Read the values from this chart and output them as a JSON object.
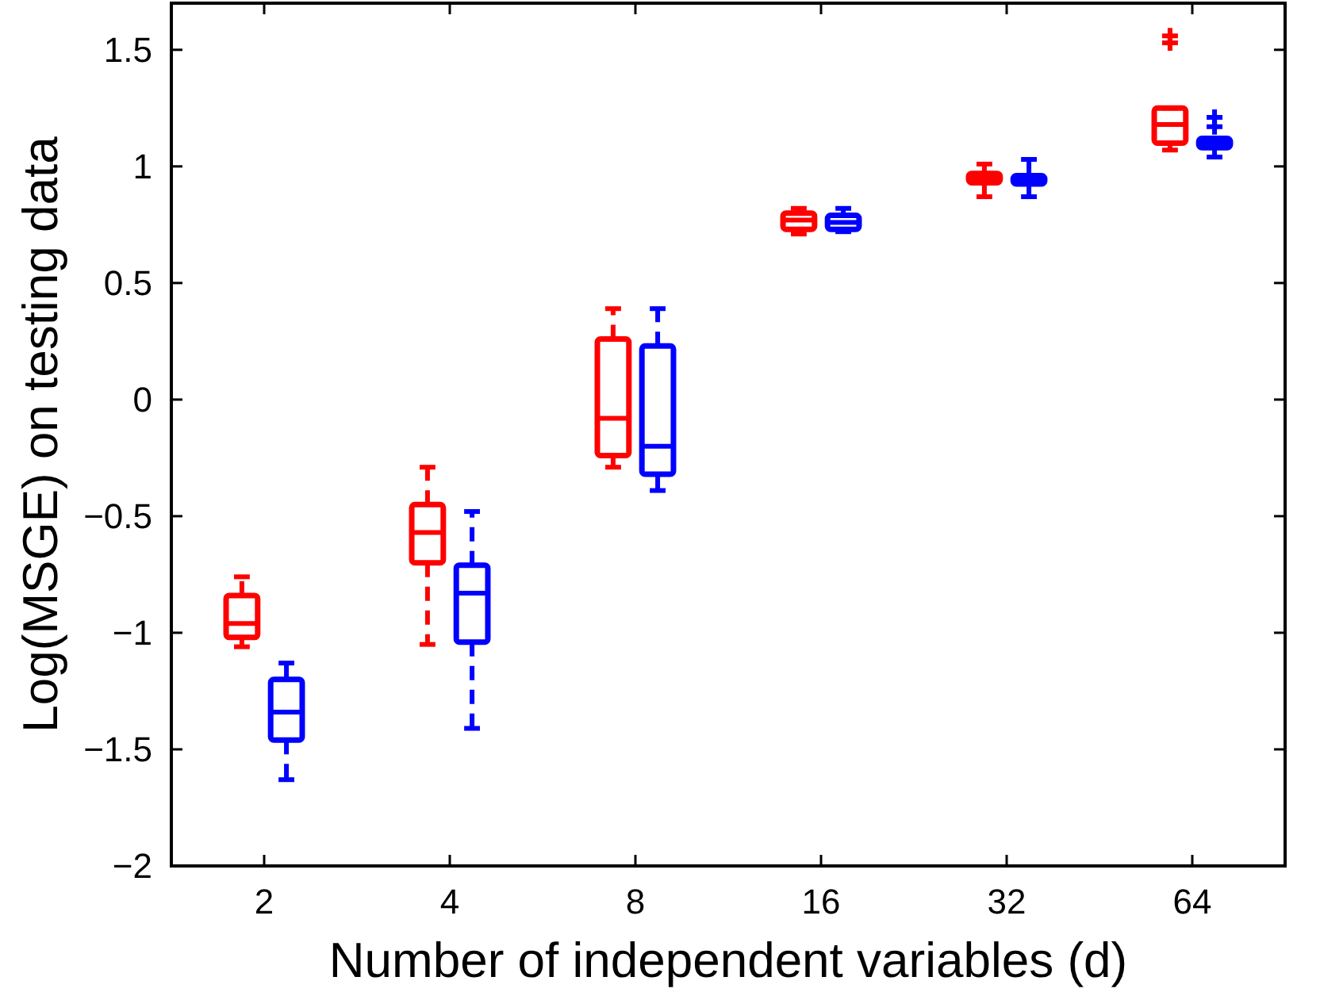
{
  "chart_data": {
    "type": "box",
    "xlabel": "Number of independent variables (d)",
    "ylabel": "Log(MSGE) on testing data",
    "categories": [
      "2",
      "4",
      "8",
      "16",
      "32",
      "64"
    ],
    "ylim": [
      -2,
      1.7
    ],
    "yticks": [
      -2,
      -1.5,
      -1,
      -0.5,
      0,
      0.5,
      1,
      1.5
    ],
    "grid": false,
    "line_style": "dashed",
    "marker": "cross",
    "series": [
      {
        "color": "#ff0000",
        "boxes": [
          {
            "low": -1.06,
            "q1": -1.02,
            "median": -0.96,
            "q3": -0.84,
            "high": -0.76
          },
          {
            "low": -1.05,
            "q1": -0.7,
            "median": -0.57,
            "q3": -0.45,
            "high": -0.29
          },
          {
            "low": -0.29,
            "q1": -0.24,
            "median": -0.08,
            "q3": 0.26,
            "high": 0.39
          },
          {
            "low": 0.71,
            "q1": 0.73,
            "median": 0.77,
            "q3": 0.8,
            "high": 0.82
          },
          {
            "low": 0.87,
            "q1": 0.93,
            "median": 0.95,
            "q3": 0.97,
            "high": 1.01
          },
          {
            "low": 1.07,
            "q1": 1.1,
            "median": 1.18,
            "q3": 1.25,
            "high": 1.25,
            "outliers": [
              1.53,
              1.56
            ]
          }
        ]
      },
      {
        "color": "#0000ff",
        "boxes": [
          {
            "low": -1.63,
            "q1": -1.46,
            "median": -1.34,
            "q3": -1.2,
            "high": -1.13
          },
          {
            "low": -1.41,
            "q1": -1.04,
            "median": -0.83,
            "q3": -0.71,
            "high": -0.48
          },
          {
            "low": -0.39,
            "q1": -0.32,
            "median": -0.2,
            "q3": 0.23,
            "high": 0.39
          },
          {
            "low": 0.72,
            "q1": 0.73,
            "median": 0.76,
            "q3": 0.79,
            "high": 0.82
          },
          {
            "low": 0.87,
            "q1": 0.925,
            "median": 0.945,
            "q3": 0.96,
            "high": 1.03
          },
          {
            "low": 1.04,
            "q1": 1.08,
            "median": 1.1,
            "q3": 1.12,
            "high": 1.12,
            "outliers": [
              1.17,
              1.21
            ]
          }
        ]
      }
    ]
  }
}
